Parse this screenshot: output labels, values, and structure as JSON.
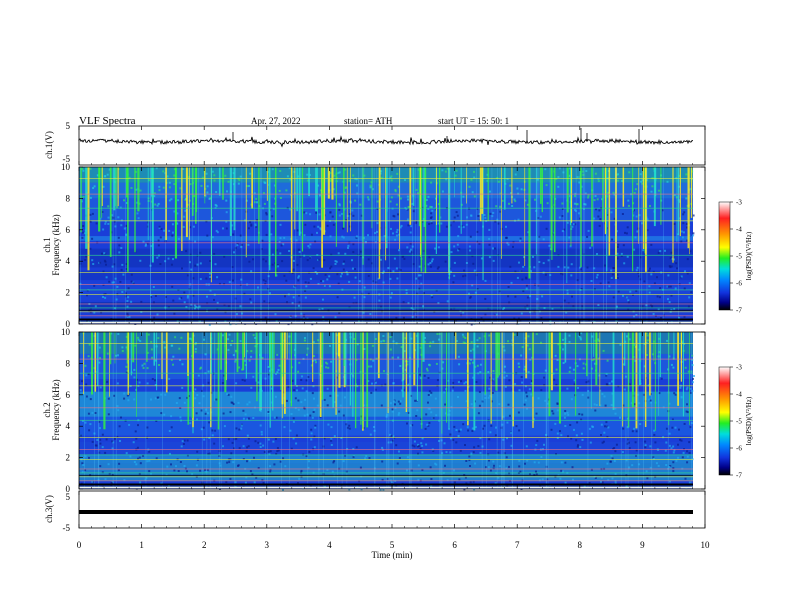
{
  "header": {
    "title": "VLF  Spectra",
    "date": "Apr. 27, 2022",
    "station": "station= ATH",
    "start": "start  UT  =    15: 50: 1"
  },
  "chart_data": [
    {
      "type": "line",
      "panel": "ch1-waveform",
      "ylabel": "ch.1(V)",
      "ylim": [
        -5,
        5
      ],
      "yticks": [
        "5",
        "-5"
      ],
      "xlim": [
        0,
        10
      ],
      "series_color": "#000000"
    },
    {
      "type": "heatmap",
      "panel": "ch1-spectrogram",
      "ylabel": "ch.1\nFrequency  (kHz)",
      "ylim": [
        0,
        10
      ],
      "yticks": [
        "0",
        "2",
        "4",
        "6",
        "8",
        "10"
      ],
      "xlim": [
        0,
        10
      ],
      "colorbar": {
        "label": "log(PSD)(V²/Hz)",
        "range": [
          -7,
          -3
        ],
        "ticks": [
          "-3",
          "-4",
          "-5",
          "-6",
          "-7"
        ]
      }
    },
    {
      "type": "heatmap",
      "panel": "ch2-spectrogram",
      "ylabel": "ch.2\nFrequency  (kHz)",
      "ylim": [
        0,
        10
      ],
      "yticks": [
        "0",
        "2",
        "4",
        "6",
        "8",
        "10"
      ],
      "xlim": [
        0,
        10
      ],
      "colorbar": {
        "label": "log(PSD)(V²/Hz)",
        "range": [
          -7,
          -3
        ],
        "ticks": [
          "-3",
          "-4",
          "-5",
          "-6",
          "-7"
        ]
      }
    },
    {
      "type": "line",
      "panel": "ch3-waveform",
      "ylabel": "ch.3(V)",
      "ylim": [
        -5,
        5
      ],
      "yticks": [
        "5",
        "0",
        "-5"
      ],
      "xlim": [
        0,
        10
      ],
      "series": [
        {
          "values_constant": -1.5
        }
      ],
      "series_color": "#000000"
    }
  ],
  "xaxis": {
    "label": "Time  (min)",
    "ticks": [
      "0",
      "1",
      "2",
      "3",
      "4",
      "5",
      "6",
      "7",
      "8",
      "9",
      "10"
    ]
  },
  "colors": {
    "colormap": [
      "#ffffff",
      "#ff2020",
      "#ff9900",
      "#ffff00",
      "#22ee22",
      "#00dddd",
      "#0088ff",
      "#1133dd",
      "#000088",
      "#000000"
    ]
  }
}
